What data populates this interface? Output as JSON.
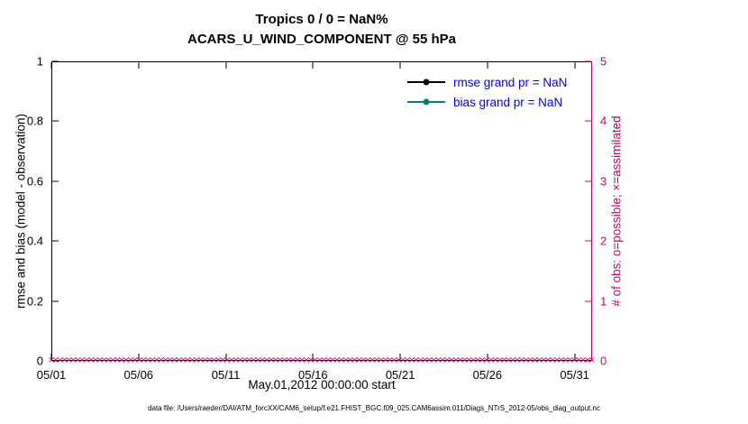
{
  "figure": {
    "caption": "data file: /Users/raeder/DAI/ATM_forcXX/CAM6_setup/f.e21.FHIST_BGC.f09_025.CAM6assim.011/Diags_NTrS_2012-05/obs_diag_output.nc"
  },
  "chart_data": {
    "type": "line",
    "title_line1": "Tropics 0 / 0 = NaN%",
    "title_line2": "ACARS_U_WIND_COMPONENT @ 55 hPa",
    "xlabel": "May.01,2012 00:00:00 start",
    "ylabel_left": "rmse and bias (model - observation)",
    "ylabel_right": "# of obs: o=possible; ×=assimilated",
    "x_range_days": [
      0,
      31
    ],
    "x_tick_days": [
      0,
      5,
      10,
      15,
      20,
      25,
      30
    ],
    "x_tick_labels": [
      "05/01",
      "05/06",
      "05/11",
      "05/16",
      "05/21",
      "05/26",
      "05/31"
    ],
    "ylim_left": [
      0,
      1
    ],
    "y_ticks_left": [
      0,
      0.2,
      0.4,
      0.6,
      0.8,
      1
    ],
    "y_tick_labels_left": [
      "0",
      "0.2",
      "0.4",
      "0.6",
      "0.8",
      "1"
    ],
    "ylim_right": [
      0,
      5
    ],
    "y_ticks_right": [
      0,
      1,
      2,
      3,
      4,
      5
    ],
    "y_tick_labels_right": [
      "0",
      "1",
      "2",
      "3",
      "4",
      "5"
    ],
    "grid": false,
    "legend": {
      "position": "top-right-inside",
      "text_color": "#0000ff",
      "entries": [
        {
          "label": "rmse grand pr = NaN",
          "color": "#000000",
          "marker": "filled-circle"
        },
        {
          "label": "bias grand pr = NaN",
          "color": "#008080",
          "marker": "filled-circle"
        }
      ]
    },
    "series": [
      {
        "name": "rmse",
        "axis": "left",
        "color": "#000000",
        "values": "NaN - no line drawn"
      },
      {
        "name": "bias",
        "axis": "left",
        "color": "#008080",
        "values": "NaN - no line drawn"
      },
      {
        "name": "observations assimilated",
        "axis": "right",
        "color": "#cc0066",
        "marker": "x",
        "constant_y": 0,
        "marker_count": 124,
        "x_span_days": [
          0,
          31
        ]
      }
    ],
    "colors": {
      "left_axis": "#000000",
      "right_axis": "#cc0066",
      "legend_text": "#0000ff"
    }
  }
}
